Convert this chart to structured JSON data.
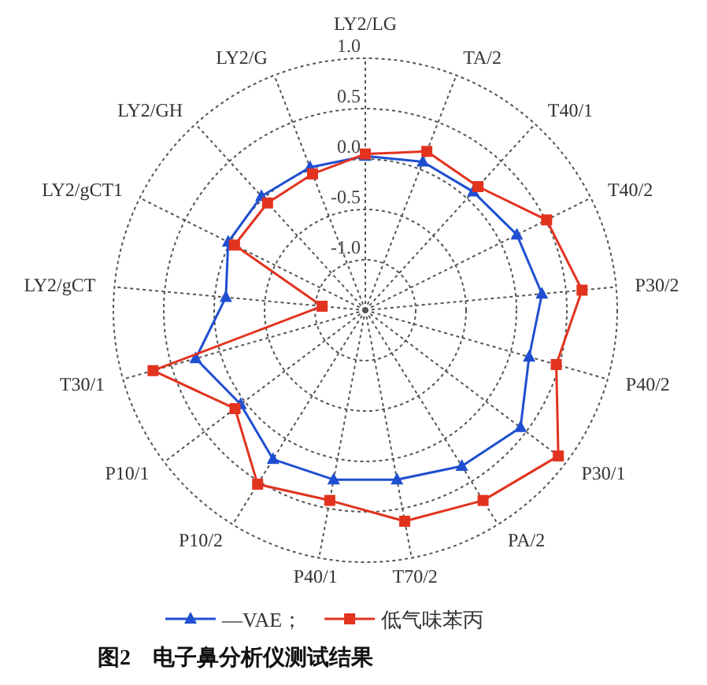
{
  "chart_data": {
    "type": "radar",
    "categories": [
      "LY2/LG",
      "TA/2",
      "T40/1",
      "T40/2",
      "P30/2",
      "P40/2",
      "P30/1",
      "PA/2",
      "T70/2",
      "P40/1",
      "P10/2",
      "P10/1",
      "T30/1",
      "LY2/gCT",
      "LY2/gCT1",
      "LY2/GH",
      "LY2/G"
    ],
    "ylim": [
      -1.5,
      1.0
    ],
    "yticks": [
      {
        "value": -1,
        "label": "-1.0"
      },
      {
        "value": -0.5,
        "label": "-0.5"
      },
      {
        "value": 0,
        "label": "0.0"
      },
      {
        "value": 0.5,
        "label": "0.5"
      },
      {
        "value": 1,
        "label": "1.0"
      }
    ],
    "grid": true,
    "legend": "bottom",
    "series": [
      {
        "name": "—VAE；",
        "color": "#1f4fd0",
        "marker": "triangle",
        "values": [
          0.03,
          0.08,
          0.09,
          0.18,
          0.26,
          0.19,
          0.43,
          0.32,
          0.21,
          0.21,
          0.24,
          0.05,
          0.25,
          -0.11,
          0.02,
          0.03,
          0.02
        ]
      },
      {
        "name": "低气味苯丙",
        "color": "#e2331f",
        "marker": "square",
        "values": [
          0.05,
          0.19,
          0.16,
          0.51,
          0.66,
          0.47,
          0.9,
          0.72,
          0.63,
          0.42,
          0.53,
          0.12,
          0.69,
          -1.07,
          -0.05,
          -0.06,
          -0.05
        ]
      }
    ],
    "annotations": [
      "图2　电子鼻分析仪测试结果"
    ]
  }
}
